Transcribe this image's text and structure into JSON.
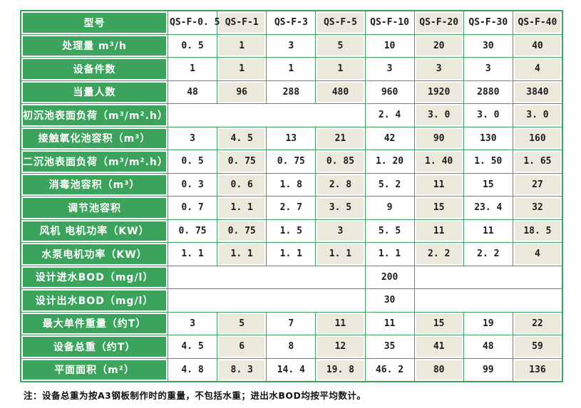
{
  "colors": {
    "green": "#3CA35C",
    "beige": "#EBE8DC",
    "text": "#1C1C1C",
    "grid_white": "#FFFFFF"
  },
  "table": {
    "header": {
      "label": "型号",
      "models": [
        "QS-F-0. 5",
        "QS-F-1",
        "QS-F-3",
        "QS-F-5",
        "QS-F-10",
        "QS-F-20",
        "QS-F-30",
        "QS-F-40"
      ]
    },
    "rows": [
      {
        "label": "处理量 m³/h",
        "cells": [
          {
            "t": "0. 5"
          },
          {
            "t": "1"
          },
          {
            "t": "3"
          },
          {
            "t": "5"
          },
          {
            "t": "10"
          },
          {
            "t": "20"
          },
          {
            "t": "30"
          },
          {
            "t": "40"
          }
        ]
      },
      {
        "label": "设备件数",
        "cells": [
          {
            "t": "1"
          },
          {
            "t": "1"
          },
          {
            "t": "1"
          },
          {
            "t": "1"
          },
          {
            "t": "3"
          },
          {
            "t": "3"
          },
          {
            "t": "3"
          },
          {
            "t": "4"
          }
        ]
      },
      {
        "label": "当量人数",
        "cells": [
          {
            "t": "48"
          },
          {
            "t": "96"
          },
          {
            "t": "288"
          },
          {
            "t": "480"
          },
          {
            "t": "960"
          },
          {
            "t": "1920"
          },
          {
            "t": "2880"
          },
          {
            "t": "3840"
          }
        ]
      },
      {
        "label": "初沉池表面负荷（m³/m².h）",
        "cells": [
          {
            "t": "",
            "span": 4
          },
          {
            "t": "2. 4"
          },
          {
            "t": "3. 0"
          },
          {
            "t": "3. 0"
          },
          {
            "t": "3. 0"
          }
        ]
      },
      {
        "label": "接触氧化池容积（m³）",
        "cells": [
          {
            "t": "3"
          },
          {
            "t": "4. 5"
          },
          {
            "t": "13"
          },
          {
            "t": "21"
          },
          {
            "t": "42"
          },
          {
            "t": "90"
          },
          {
            "t": "130"
          },
          {
            "t": "160"
          }
        ]
      },
      {
        "label": "二沉池表面负荷（m³/m².h）",
        "cells": [
          {
            "t": "0. 5"
          },
          {
            "t": "0. 75"
          },
          {
            "t": "0. 75"
          },
          {
            "t": "0. 85"
          },
          {
            "t": "1. 20"
          },
          {
            "t": "1. 40"
          },
          {
            "t": "1. 50"
          },
          {
            "t": "1. 65"
          }
        ]
      },
      {
        "label": "消毒池容积（m³）",
        "cells": [
          {
            "t": "0. 3"
          },
          {
            "t": "0. 6"
          },
          {
            "t": "1. 8"
          },
          {
            "t": "2. 8"
          },
          {
            "t": "5. 2"
          },
          {
            "t": "11"
          },
          {
            "t": "15"
          },
          {
            "t": "27"
          }
        ]
      },
      {
        "label": "调节池容积",
        "cells": [
          {
            "t": "0. 7"
          },
          {
            "t": "1. 1"
          },
          {
            "t": "2. 7"
          },
          {
            "t": "3. 5"
          },
          {
            "t": "9"
          },
          {
            "t": "15"
          },
          {
            "t": "23. 4"
          },
          {
            "t": "32"
          }
        ]
      },
      {
        "label": "风机 电机功率（KW）",
        "cells": [
          {
            "t": "0. 75"
          },
          {
            "t": "0. 75"
          },
          {
            "t": "1. 5"
          },
          {
            "t": "3"
          },
          {
            "t": "5. 5"
          },
          {
            "t": "11"
          },
          {
            "t": "11"
          },
          {
            "t": "18. 5"
          }
        ]
      },
      {
        "label": "水泵电机功率（KW）",
        "cells": [
          {
            "t": "1. 1"
          },
          {
            "t": "1. 1"
          },
          {
            "t": "1. 1"
          },
          {
            "t": "1. 1"
          },
          {
            "t": "1. 1"
          },
          {
            "t": "2. 2"
          },
          {
            "t": "2. 2"
          },
          {
            "t": "4"
          }
        ]
      },
      {
        "label": "设计进水BOD（mg/l）",
        "cells": [
          {
            "t": "",
            "span": 4
          },
          {
            "t": "200"
          },
          {
            "t": "",
            "span": 3
          }
        ]
      },
      {
        "label": "设计出水BOD（mg/l）",
        "cells": [
          {
            "t": "",
            "span": 4
          },
          {
            "t": "30"
          },
          {
            "t": "",
            "span": 3
          }
        ]
      },
      {
        "label": "最大单件重量（约T）",
        "cells": [
          {
            "t": "3"
          },
          {
            "t": "5"
          },
          {
            "t": "7"
          },
          {
            "t": "11"
          },
          {
            "t": "11"
          },
          {
            "t": "15"
          },
          {
            "t": "19"
          },
          {
            "t": "22"
          }
        ]
      },
      {
        "label": "设备总重（约T）",
        "cells": [
          {
            "t": "4. 5"
          },
          {
            "t": "6"
          },
          {
            "t": "8"
          },
          {
            "t": "12"
          },
          {
            "t": "35"
          },
          {
            "t": "41"
          },
          {
            "t": "48"
          },
          {
            "t": "59"
          }
        ]
      },
      {
        "label": "平面面积（m²）",
        "cells": [
          {
            "t": "4. 8"
          },
          {
            "t": "8. 3"
          },
          {
            "t": "14. 4"
          },
          {
            "t": "19. 8"
          },
          {
            "t": "46. 2"
          },
          {
            "t": "80"
          },
          {
            "t": "99"
          },
          {
            "t": "136"
          }
        ]
      }
    ]
  },
  "note": "注：设备总重为按A3钢板制作时的重量，不包括水重；进出水BOD均按平均数计。"
}
